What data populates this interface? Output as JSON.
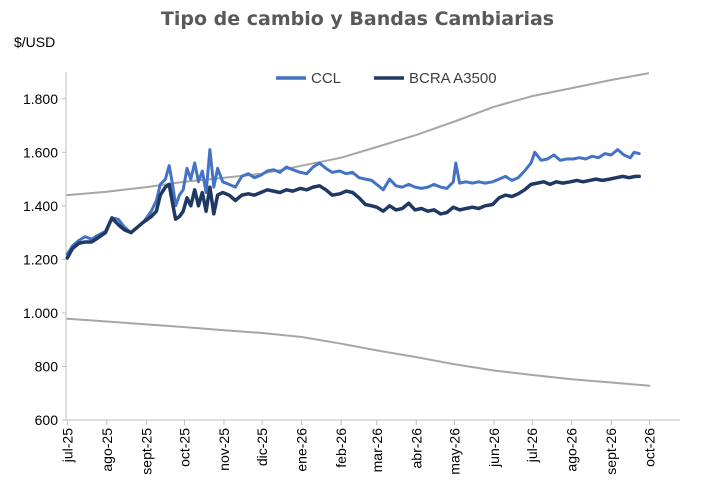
{
  "chart_data": {
    "type": "line",
    "title": "Tipo de cambio y Bandas Cambiarias",
    "ylabel": "$/USD",
    "xlabel": "",
    "ylim": [
      600,
      1900
    ],
    "yticks": [
      600,
      800,
      1000,
      1200,
      1400,
      1600,
      1800
    ],
    "ytick_labels": [
      "600",
      "800",
      "1.000",
      "1.200",
      "1.400",
      "1.600",
      "1.800"
    ],
    "x_range": [
      "2025-06-30",
      "2026-10-25"
    ],
    "xticks": [
      {
        "date": "2025-07-01",
        "label": "jul-25"
      },
      {
        "date": "2025-08-01",
        "label": "ago-25"
      },
      {
        "date": "2025-09-01",
        "label": "sept-25"
      },
      {
        "date": "2025-10-01",
        "label": "oct-25"
      },
      {
        "date": "2025-11-01",
        "label": "nov-25"
      },
      {
        "date": "2025-12-01",
        "label": "dic-25"
      },
      {
        "date": "2026-01-01",
        "label": "ene-26"
      },
      {
        "date": "2026-02-01",
        "label": "feb-26"
      },
      {
        "date": "2026-03-01",
        "label": "mar-26"
      },
      {
        "date": "2026-04-01",
        "label": "abr-26"
      },
      {
        "date": "2026-05-01",
        "label": "may-26"
      },
      {
        "date": "2026-06-01",
        "label": "jun-26"
      },
      {
        "date": "2026-07-01",
        "label": "jul-26"
      },
      {
        "date": "2026-08-01",
        "label": "ago-26"
      },
      {
        "date": "2026-09-01",
        "label": "sept-26"
      },
      {
        "date": "2026-10-01",
        "label": "oct-26"
      }
    ],
    "grid": false,
    "legend_position": "top-center",
    "series": [
      {
        "name": "CCL",
        "color": "#4472C4",
        "points": [
          [
            "2025-07-01",
            1220
          ],
          [
            "2025-07-05",
            1250
          ],
          [
            "2025-07-10",
            1270
          ],
          [
            "2025-07-15",
            1285
          ],
          [
            "2025-07-20",
            1275
          ],
          [
            "2025-07-25",
            1290
          ],
          [
            "2025-07-31",
            1305
          ],
          [
            "2025-08-05",
            1355
          ],
          [
            "2025-08-10",
            1350
          ],
          [
            "2025-08-15",
            1320
          ],
          [
            "2025-08-20",
            1300
          ],
          [
            "2025-08-25",
            1320
          ],
          [
            "2025-08-30",
            1340
          ],
          [
            "2025-09-05",
            1380
          ],
          [
            "2025-09-09",
            1420
          ],
          [
            "2025-09-12",
            1480
          ],
          [
            "2025-09-16",
            1500
          ],
          [
            "2025-09-19",
            1550
          ],
          [
            "2025-09-22",
            1470
          ],
          [
            "2025-09-24",
            1400
          ],
          [
            "2025-09-27",
            1440
          ],
          [
            "2025-09-30",
            1460
          ],
          [
            "2025-10-03",
            1540
          ],
          [
            "2025-10-06",
            1500
          ],
          [
            "2025-10-09",
            1560
          ],
          [
            "2025-10-12",
            1490
          ],
          [
            "2025-10-15",
            1530
          ],
          [
            "2025-10-18",
            1450
          ],
          [
            "2025-10-21",
            1610
          ],
          [
            "2025-10-24",
            1470
          ],
          [
            "2025-10-27",
            1540
          ],
          [
            "2025-10-31",
            1490
          ],
          [
            "2025-11-05",
            1480
          ],
          [
            "2025-11-10",
            1470
          ],
          [
            "2025-11-15",
            1510
          ],
          [
            "2025-11-20",
            1520
          ],
          [
            "2025-11-25",
            1505
          ],
          [
            "2025-11-30",
            1515
          ],
          [
            "2025-12-05",
            1530
          ],
          [
            "2025-12-10",
            1535
          ],
          [
            "2025-12-15",
            1525
          ],
          [
            "2025-12-20",
            1545
          ],
          [
            "2025-12-25",
            1535
          ],
          [
            "2025-12-31",
            1525
          ],
          [
            "2026-01-05",
            1520
          ],
          [
            "2026-01-10",
            1545
          ],
          [
            "2026-01-15",
            1560
          ],
          [
            "2026-01-20",
            1540
          ],
          [
            "2026-01-25",
            1525
          ],
          [
            "2026-01-31",
            1530
          ],
          [
            "2026-02-05",
            1520
          ],
          [
            "2026-02-10",
            1525
          ],
          [
            "2026-02-15",
            1505
          ],
          [
            "2026-02-20",
            1500
          ],
          [
            "2026-02-25",
            1495
          ],
          [
            "2026-03-01",
            1480
          ],
          [
            "2026-03-06",
            1460
          ],
          [
            "2026-03-11",
            1500
          ],
          [
            "2026-03-16",
            1475
          ],
          [
            "2026-03-21",
            1470
          ],
          [
            "2026-03-26",
            1480
          ],
          [
            "2026-03-31",
            1470
          ],
          [
            "2026-04-05",
            1465
          ],
          [
            "2026-04-10",
            1470
          ],
          [
            "2026-04-15",
            1480
          ],
          [
            "2026-04-20",
            1470
          ],
          [
            "2026-04-25",
            1465
          ],
          [
            "2026-04-30",
            1490
          ],
          [
            "2026-05-02",
            1560
          ],
          [
            "2026-05-05",
            1485
          ],
          [
            "2026-05-10",
            1490
          ],
          [
            "2026-05-15",
            1485
          ],
          [
            "2026-05-20",
            1490
          ],
          [
            "2026-05-25",
            1485
          ],
          [
            "2026-05-31",
            1490
          ],
          [
            "2026-06-05",
            1500
          ],
          [
            "2026-06-10",
            1510
          ],
          [
            "2026-06-15",
            1495
          ],
          [
            "2026-06-20",
            1505
          ],
          [
            "2026-06-25",
            1530
          ],
          [
            "2026-06-30",
            1560
          ],
          [
            "2026-07-03",
            1600
          ],
          [
            "2026-07-08",
            1570
          ],
          [
            "2026-07-13",
            1575
          ],
          [
            "2026-07-18",
            1590
          ],
          [
            "2026-07-23",
            1570
          ],
          [
            "2026-07-28",
            1575
          ],
          [
            "2026-08-02",
            1575
          ],
          [
            "2026-08-07",
            1580
          ],
          [
            "2026-08-12",
            1575
          ],
          [
            "2026-08-17",
            1585
          ],
          [
            "2026-08-22",
            1580
          ],
          [
            "2026-08-27",
            1595
          ],
          [
            "2026-09-01",
            1590
          ],
          [
            "2026-09-06",
            1610
          ],
          [
            "2026-09-11",
            1590
          ],
          [
            "2026-09-16",
            1580
          ],
          [
            "2026-09-19",
            1600
          ],
          [
            "2026-09-23",
            1595
          ]
        ]
      },
      {
        "name": "BCRA A3500",
        "color": "#1F3864",
        "points": [
          [
            "2025-07-01",
            1205
          ],
          [
            "2025-07-05",
            1240
          ],
          [
            "2025-07-10",
            1260
          ],
          [
            "2025-07-15",
            1265
          ],
          [
            "2025-07-20",
            1265
          ],
          [
            "2025-07-25",
            1280
          ],
          [
            "2025-07-31",
            1300
          ],
          [
            "2025-08-05",
            1355
          ],
          [
            "2025-08-10",
            1330
          ],
          [
            "2025-08-15",
            1310
          ],
          [
            "2025-08-20",
            1300
          ],
          [
            "2025-08-25",
            1320
          ],
          [
            "2025-08-30",
            1340
          ],
          [
            "2025-09-05",
            1360
          ],
          [
            "2025-09-09",
            1380
          ],
          [
            "2025-09-12",
            1440
          ],
          [
            "2025-09-16",
            1470
          ],
          [
            "2025-09-19",
            1480
          ],
          [
            "2025-09-22",
            1400
          ],
          [
            "2025-09-24",
            1350
          ],
          [
            "2025-09-27",
            1360
          ],
          [
            "2025-09-30",
            1380
          ],
          [
            "2025-10-03",
            1430
          ],
          [
            "2025-10-06",
            1400
          ],
          [
            "2025-10-09",
            1460
          ],
          [
            "2025-10-12",
            1400
          ],
          [
            "2025-10-15",
            1450
          ],
          [
            "2025-10-18",
            1380
          ],
          [
            "2025-10-21",
            1470
          ],
          [
            "2025-10-24",
            1370
          ],
          [
            "2025-10-27",
            1440
          ],
          [
            "2025-10-31",
            1450
          ],
          [
            "2025-11-05",
            1440
          ],
          [
            "2025-11-10",
            1420
          ],
          [
            "2025-11-15",
            1440
          ],
          [
            "2025-11-20",
            1445
          ],
          [
            "2025-11-25",
            1440
          ],
          [
            "2025-11-30",
            1450
          ],
          [
            "2025-12-05",
            1460
          ],
          [
            "2025-12-10",
            1455
          ],
          [
            "2025-12-15",
            1450
          ],
          [
            "2025-12-20",
            1460
          ],
          [
            "2025-12-25",
            1455
          ],
          [
            "2025-12-31",
            1465
          ],
          [
            "2026-01-05",
            1460
          ],
          [
            "2026-01-10",
            1470
          ],
          [
            "2026-01-15",
            1475
          ],
          [
            "2026-01-20",
            1460
          ],
          [
            "2026-01-25",
            1440
          ],
          [
            "2026-01-31",
            1445
          ],
          [
            "2026-02-05",
            1455
          ],
          [
            "2026-02-10",
            1450
          ],
          [
            "2026-02-15",
            1430
          ],
          [
            "2026-02-20",
            1405
          ],
          [
            "2026-02-25",
            1400
          ],
          [
            "2026-03-01",
            1395
          ],
          [
            "2026-03-06",
            1380
          ],
          [
            "2026-03-11",
            1400
          ],
          [
            "2026-03-16",
            1385
          ],
          [
            "2026-03-21",
            1390
          ],
          [
            "2026-03-26",
            1410
          ],
          [
            "2026-03-31",
            1385
          ],
          [
            "2026-04-05",
            1390
          ],
          [
            "2026-04-10",
            1380
          ],
          [
            "2026-04-15",
            1385
          ],
          [
            "2026-04-20",
            1370
          ],
          [
            "2026-04-25",
            1375
          ],
          [
            "2026-04-30",
            1395
          ],
          [
            "2026-05-05",
            1385
          ],
          [
            "2026-05-10",
            1390
          ],
          [
            "2026-05-15",
            1395
          ],
          [
            "2026-05-20",
            1390
          ],
          [
            "2026-05-25",
            1400
          ],
          [
            "2026-05-31",
            1405
          ],
          [
            "2026-06-05",
            1430
          ],
          [
            "2026-06-10",
            1440
          ],
          [
            "2026-06-15",
            1435
          ],
          [
            "2026-06-20",
            1445
          ],
          [
            "2026-06-25",
            1460
          ],
          [
            "2026-06-30",
            1480
          ],
          [
            "2026-07-05",
            1485
          ],
          [
            "2026-07-10",
            1490
          ],
          [
            "2026-07-15",
            1480
          ],
          [
            "2026-07-20",
            1490
          ],
          [
            "2026-07-25",
            1485
          ],
          [
            "2026-07-31",
            1490
          ],
          [
            "2026-08-05",
            1495
          ],
          [
            "2026-08-10",
            1490
          ],
          [
            "2026-08-15",
            1495
          ],
          [
            "2026-08-20",
            1500
          ],
          [
            "2026-08-25",
            1495
          ],
          [
            "2026-08-31",
            1500
          ],
          [
            "2026-09-05",
            1505
          ],
          [
            "2026-09-10",
            1510
          ],
          [
            "2026-09-15",
            1505
          ],
          [
            "2026-09-20",
            1510
          ],
          [
            "2026-09-23",
            1510
          ]
        ]
      },
      {
        "color": "#A6A6A6",
        "points": [
          [
            "2025-07-01",
            1440
          ],
          [
            "2025-08-01",
            1453
          ],
          [
            "2025-09-01",
            1470
          ],
          [
            "2025-10-01",
            1490
          ],
          [
            "2025-11-01",
            1505
          ],
          [
            "2025-12-01",
            1520
          ],
          [
            "2026-01-01",
            1550
          ],
          [
            "2026-02-01",
            1580
          ],
          [
            "2026-03-01",
            1620
          ],
          [
            "2026-04-01",
            1665
          ],
          [
            "2026-05-01",
            1715
          ],
          [
            "2026-06-01",
            1770
          ],
          [
            "2026-07-01",
            1810
          ],
          [
            "2026-08-01",
            1840
          ],
          [
            "2026-09-01",
            1870
          ],
          [
            "2026-09-30",
            1895
          ]
        ]
      },
      {
        "color": "#A6A6A6",
        "points": [
          [
            "2025-07-01",
            978
          ],
          [
            "2025-08-01",
            968
          ],
          [
            "2025-09-01",
            957
          ],
          [
            "2025-10-01",
            947
          ],
          [
            "2025-11-01",
            935
          ],
          [
            "2025-12-01",
            925
          ],
          [
            "2026-01-01",
            910
          ],
          [
            "2026-02-01",
            885
          ],
          [
            "2026-03-01",
            860
          ],
          [
            "2026-04-01",
            835
          ],
          [
            "2026-05-01",
            808
          ],
          [
            "2026-06-01",
            785
          ],
          [
            "2026-07-01",
            768
          ],
          [
            "2026-08-01",
            752
          ],
          [
            "2026-09-01",
            740
          ],
          [
            "2026-10-01",
            728
          ]
        ]
      }
    ]
  }
}
